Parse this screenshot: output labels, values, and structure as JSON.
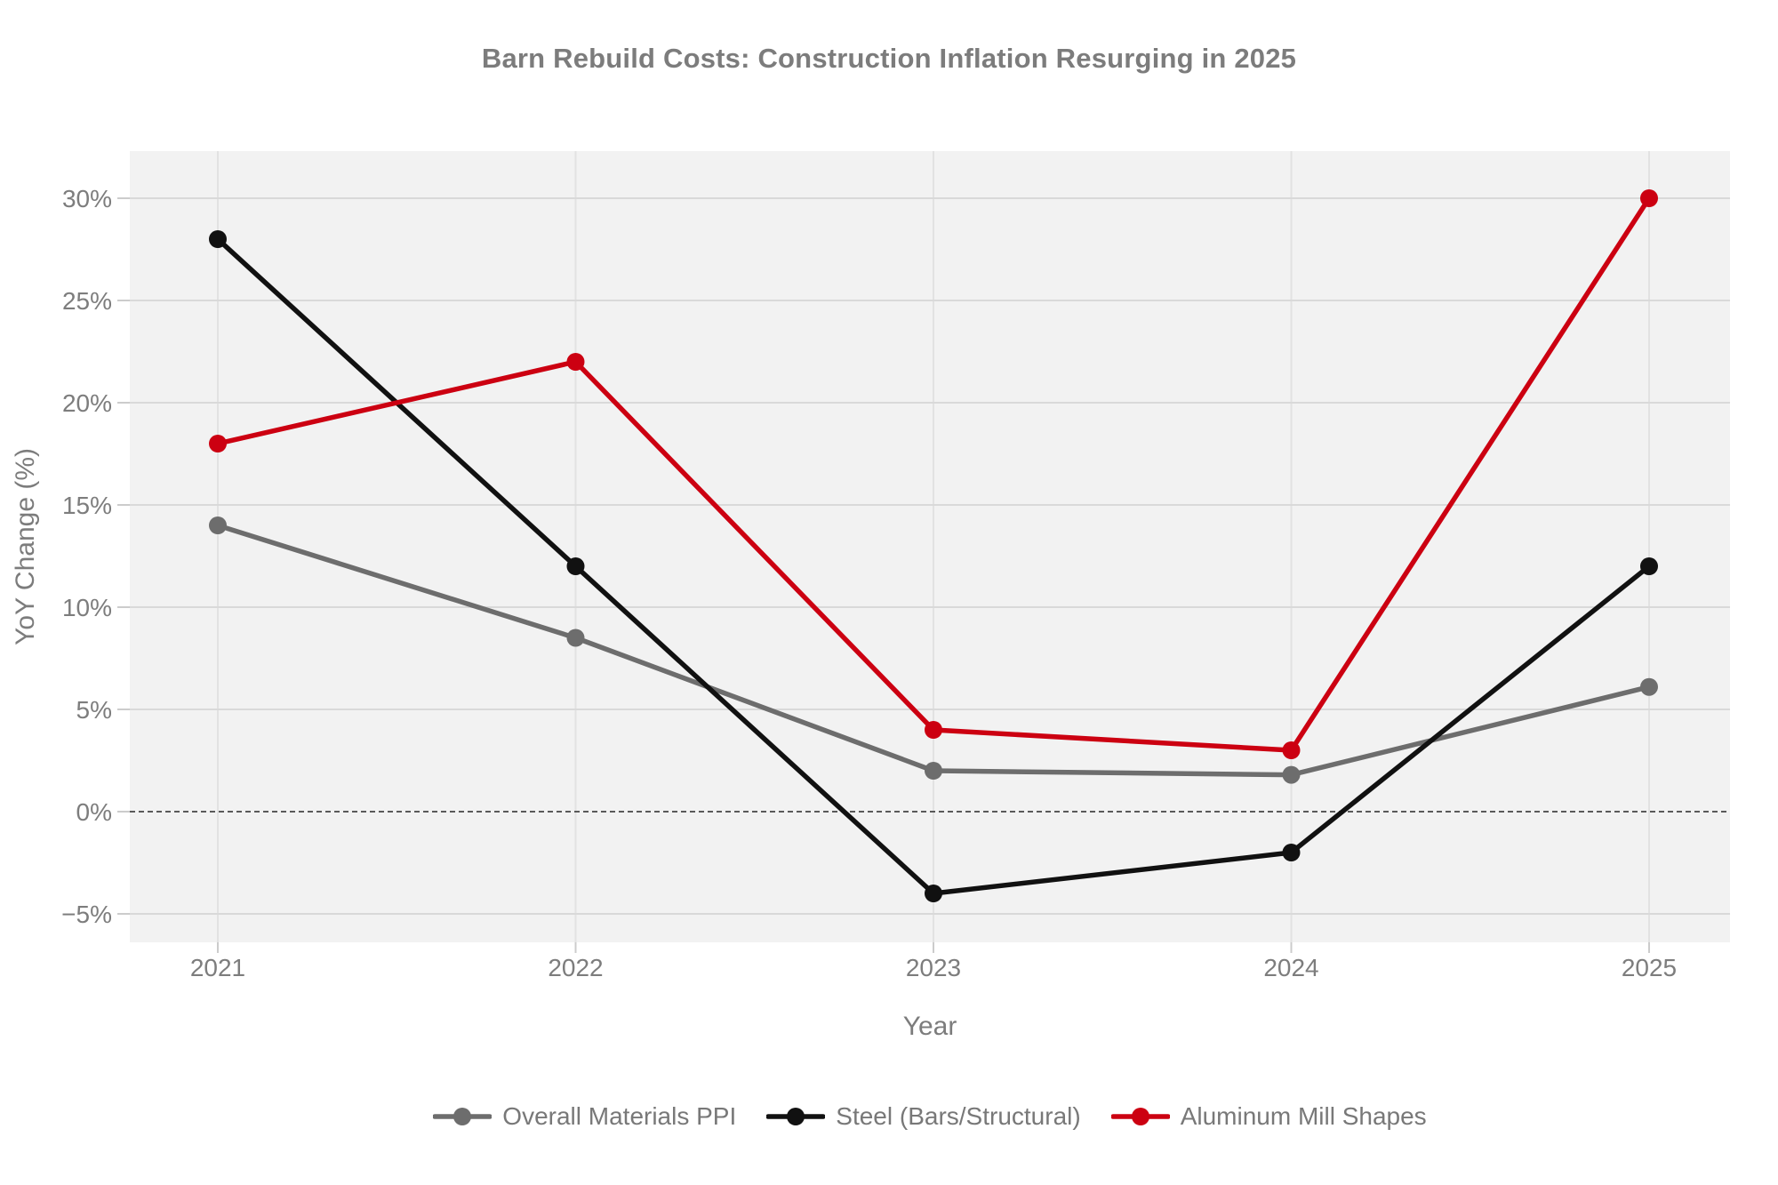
{
  "title": "Barn Rebuild Costs: Construction Inflation Resurging in 2025",
  "chart_data": {
    "type": "line",
    "title": "Barn Rebuild Costs: Construction Inflation Resurging in 2025",
    "xlabel": "Year",
    "ylabel": "YoY Change (%)",
    "categories": [
      "2021",
      "2022",
      "2023",
      "2024",
      "2025"
    ],
    "series": [
      {
        "name": "Overall Materials PPI",
        "color": "#6d6d6d",
        "values": [
          14,
          8.5,
          2.0,
          1.8,
          6.1
        ]
      },
      {
        "name": "Steel (Bars/Structural)",
        "color": "#111111",
        "values": [
          28,
          12,
          -4,
          -2,
          12
        ]
      },
      {
        "name": "Aluminum Mill Shapes",
        "color": "#cc0011",
        "values": [
          18,
          22,
          4,
          3,
          30
        ]
      }
    ],
    "y_ticks": [
      {
        "value": 30,
        "label": "30%"
      },
      {
        "value": 25,
        "label": "25%"
      },
      {
        "value": 20,
        "label": "20%"
      },
      {
        "value": 15,
        "label": "15%"
      },
      {
        "value": 10,
        "label": "10%"
      },
      {
        "value": 5,
        "label": "5%"
      },
      {
        "value": 0,
        "label": "0%"
      },
      {
        "value": -5,
        "label": "−5%"
      }
    ],
    "ylim": [
      -6.4,
      32.3
    ],
    "grid": true,
    "zero_line": "dashed",
    "legend_position": "bottom",
    "colors": {
      "plot_background": "#f2f2f2",
      "grid_horizontal": "#d9d9d9",
      "grid_vertical": "#e2e2e2",
      "zero_line": "#454545",
      "tick_mark": "#cccccc",
      "tick_label": "#7d7d7d",
      "text": "#7c7c7c"
    }
  }
}
